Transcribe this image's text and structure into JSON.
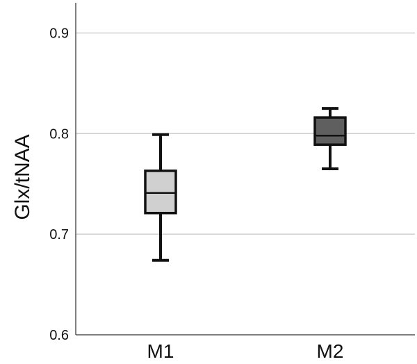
{
  "chart_data": {
    "type": "box",
    "ylabel": "Glx/tNAA",
    "xlabel": "",
    "ylim": [
      0.6,
      0.93
    ],
    "yticks": [
      0.6,
      0.7,
      0.8,
      0.9
    ],
    "ytick_labels": [
      "0.6",
      "0.7",
      "0.8",
      "0.9"
    ],
    "grid": true,
    "categories": [
      "M1",
      "M2"
    ],
    "boxes": [
      {
        "category": "M1",
        "whisker_low": 0.674,
        "q1": 0.721,
        "median": 0.741,
        "q3": 0.763,
        "whisker_high": 0.799,
        "color": "#d0d0d0"
      },
      {
        "category": "M2",
        "whisker_low": 0.765,
        "q1": 0.789,
        "median": 0.798,
        "q3": 0.816,
        "whisker_high": 0.825,
        "color": "#5f5f5f"
      }
    ]
  },
  "colors": {
    "grid": "#cfcfcf",
    "axis": "#555555",
    "box_stroke": "#111111"
  }
}
